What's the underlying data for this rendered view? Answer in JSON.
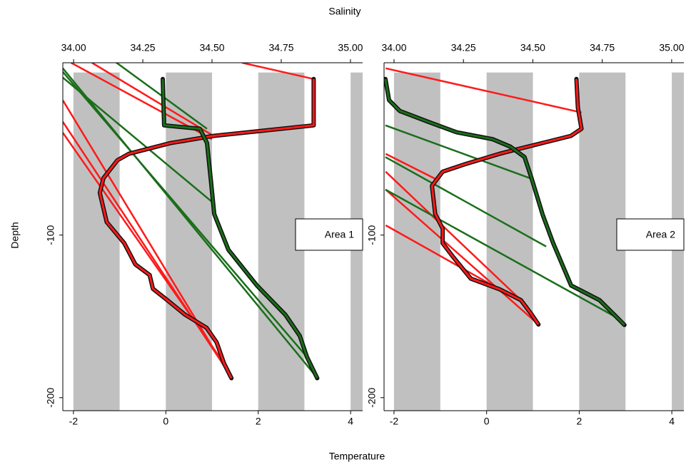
{
  "axis_labels": {
    "x2": "Salinity",
    "x": "Temperature",
    "y": "Depth"
  },
  "chart_data": [
    {
      "type": "line",
      "annotation": "Area 1",
      "xlim": [
        -2.23,
        4.26
      ],
      "xticks": [
        -2,
        0,
        2,
        4
      ],
      "x2lim": [
        33.961,
        35.044
      ],
      "x2ticks": [
        {
          "value": 34,
          "label": "34.00"
        },
        {
          "value": 34.25,
          "label": "34.25"
        },
        {
          "value": 34.5,
          "label": "34.50"
        },
        {
          "value": 34.75,
          "label": "34.75"
        },
        {
          "value": 35,
          "label": "35.00"
        }
      ],
      "ylim": [
        -208,
        6
      ],
      "yticks": [
        -100,
        -200
      ],
      "band_color": "#c0c0c0",
      "series": [
        {
          "color": "#ff1a1a",
          "x": [
            -2.23,
            1.42
          ],
          "values": [
            -17.1,
            -188
          ]
        },
        {
          "color": "#ff1a1a",
          "x": [
            -2.23,
            1.34
          ],
          "values": [
            -30.3,
            -183.8
          ]
        },
        {
          "color": "#ff1a1a",
          "x": [
            -2.23,
            1.26
          ],
          "values": [
            -37,
            -179
          ]
        },
        {
          "color": "#ff1a1a",
          "x": [
            -2.05,
            1.0
          ],
          "values": [
            6,
            -41
          ]
        },
        {
          "color": "#ff1a1a",
          "x": [
            -1.6,
            1.03
          ],
          "values": [
            6,
            -39
          ]
        },
        {
          "color": "#ff1a1a",
          "x": [
            1.65,
            3.2
          ],
          "values": [
            6,
            -4
          ]
        },
        {
          "color": "#1a6e1a",
          "axis": "x2",
          "x": [
            33.961,
            34.881
          ],
          "values": [
            2.6,
            -188
          ]
        },
        {
          "color": "#1a6e1a",
          "axis": "x2",
          "x": [
            33.961,
            34.843
          ],
          "values": [
            0.4,
            -175
          ]
        },
        {
          "color": "#1a6e1a",
          "axis": "x2",
          "x": [
            33.961,
            34.508
          ],
          "values": [
            -3.1,
            -80.7
          ]
        },
        {
          "color": "#1a6e1a",
          "axis": "x2",
          "x": [
            34.147,
            34.482
          ],
          "values": [
            7,
            -34.6
          ]
        },
        {
          "color": "#ff1a1a",
          "x": [
            3.2,
            3.2,
            1.03,
            0.1,
            -0.8,
            -1.05,
            -1.35,
            -1.43,
            -1.28,
            -0.9,
            -0.66,
            -0.35,
            -0.28,
            0.03,
            0.42,
            0.88,
            1.1,
            1.26,
            1.42
          ],
          "values": [
            -4,
            -32.5,
            -39,
            -43.4,
            -50,
            -54,
            -65,
            -74,
            -92,
            -105,
            -118,
            -124.6,
            -133,
            -140,
            -149,
            -157,
            -166,
            -179,
            -188
          ]
        },
        {
          "color": "#1a6e1a",
          "axis": "x2",
          "x": [
            34.322,
            34.327,
            34.456,
            34.482,
            34.495,
            34.508,
            34.559,
            34.662,
            34.765,
            34.817,
            34.843,
            34.88
          ],
          "values": [
            -4,
            -32.5,
            -34.6,
            -43.4,
            -65,
            -87,
            -109,
            -131,
            -149,
            -162,
            -175,
            -188
          ]
        }
      ]
    },
    {
      "type": "line",
      "annotation": "Area 2",
      "xlim": [
        -2.215,
        4.26
      ],
      "xticks": [
        -2,
        0,
        2,
        4
      ],
      "x2lim": [
        33.964,
        35.044
      ],
      "x2ticks": [
        {
          "value": 34,
          "label": "34.00"
        },
        {
          "value": 34.25,
          "label": "34.25"
        },
        {
          "value": 34.5,
          "label": "34.50"
        },
        {
          "value": 34.75,
          "label": "34.75"
        },
        {
          "value": 35,
          "label": "35.00"
        }
      ],
      "ylim": [
        -208,
        6
      ],
      "yticks": [
        -100,
        -200
      ],
      "band_color": "#c0c0c0",
      "series": [
        {
          "color": "#ff1a1a",
          "x": [
            -2.18,
            2.05
          ],
          "values": [
            2.6,
            -24.6
          ]
        },
        {
          "color": "#ff1a1a",
          "x": [
            -2.18,
            -1.11
          ],
          "values": [
            -50,
            -65.4
          ]
        },
        {
          "color": "#ff1a1a",
          "x": [
            -2.18,
            0.89
          ],
          "values": [
            -61,
            -144
          ]
        },
        {
          "color": "#ff1a1a",
          "x": [
            -2.18,
            1.12
          ],
          "values": [
            -72,
            -155
          ]
        },
        {
          "color": "#ff1a1a",
          "x": [
            -2.18,
            0.28
          ],
          "values": [
            -94,
            -133.3
          ]
        },
        {
          "color": "#1a6e1a",
          "axis": "x2",
          "x": [
            33.969,
            34.496
          ],
          "values": [
            -32.5,
            -65.4
          ]
        },
        {
          "color": "#1a6e1a",
          "axis": "x2",
          "x": [
            33.969,
            34.548
          ],
          "values": [
            -52,
            -107
          ]
        },
        {
          "color": "#1a6e1a",
          "axis": "x2",
          "x": [
            33.969,
            34.805
          ],
          "values": [
            -72,
            -151
          ]
        },
        {
          "color": "#ff1a1a",
          "x": [
            1.94,
            1.97,
            2.05,
            1.82,
            1.2,
            0.58,
            0.28,
            -0.49,
            -0.95,
            -1.18,
            -1.11,
            -0.95,
            -0.95,
            -0.72,
            -0.34,
            0.28,
            0.74,
            0.97,
            1.12
          ],
          "values": [
            -4,
            -21.5,
            -34.6,
            -39,
            -43.4,
            -47.8,
            -50,
            -56.6,
            -61,
            -69.7,
            -87,
            -96,
            -105,
            -113.6,
            -126.8,
            -133.3,
            -140,
            -148.7,
            -155
          ]
        },
        {
          "color": "#1a6e1a",
          "axis": "x2",
          "x": [
            33.969,
            33.982,
            34.021,
            34.123,
            34.226,
            34.355,
            34.419,
            34.47,
            34.496,
            34.535,
            34.573,
            34.638,
            34.74,
            34.805,
            34.83
          ],
          "values": [
            -4,
            -17,
            -23.7,
            -30.3,
            -36.8,
            -41,
            -45.6,
            -52,
            -65.4,
            -87.3,
            -104.8,
            -131,
            -140,
            -151,
            -155.3
          ]
        }
      ]
    }
  ]
}
